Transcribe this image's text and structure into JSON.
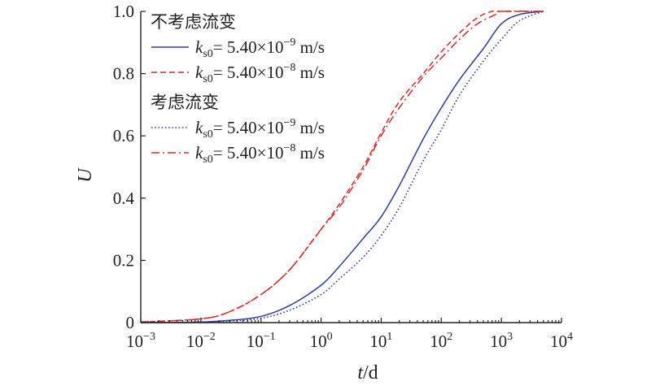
{
  "chart_data": {
    "type": "line",
    "x_scale": "log",
    "xlim": [
      0.001,
      10000
    ],
    "ylim": [
      0,
      1.0
    ],
    "xlabel_var": "t",
    "xlabel_unit": "/d",
    "ylabel": "U",
    "x_ticks": [
      {
        "value": 0.001,
        "base": "10",
        "exp": "−3"
      },
      {
        "value": 0.01,
        "base": "10",
        "exp": "−2"
      },
      {
        "value": 0.1,
        "base": "10",
        "exp": "−1"
      },
      {
        "value": 1,
        "base": "10",
        "exp": "0"
      },
      {
        "value": 10,
        "base": "10",
        "exp": "1"
      },
      {
        "value": 100,
        "base": "10",
        "exp": "2"
      },
      {
        "value": 1000,
        "base": "10",
        "exp": "3"
      },
      {
        "value": 10000,
        "base": "10",
        "exp": "4"
      }
    ],
    "y_ticks": [
      {
        "value": 0,
        "label": "0"
      },
      {
        "value": 0.2,
        "label": "0.2"
      },
      {
        "value": 0.4,
        "label": "0.4"
      },
      {
        "value": 0.6,
        "label": "0.6"
      },
      {
        "value": 0.8,
        "label": "0.8"
      },
      {
        "value": 1.0,
        "label": "1.0"
      }
    ],
    "legend": {
      "placement": "top-left",
      "groups": [
        {
          "title": "不考虑流变",
          "series_indices": [
            0,
            1
          ]
        },
        {
          "title": "考虑流变",
          "series_indices": [
            2,
            3
          ]
        }
      ]
    },
    "series": [
      {
        "label_var": "k",
        "label_sub": "s0",
        "label_eq": "= 5.40×10",
        "label_exp": "−9",
        "label_unit": " m/s",
        "color": "#2b3d9a",
        "style": "solid",
        "x": [
          0.001,
          0.01,
          0.03,
          0.1,
          0.3,
          1,
          2,
          5,
          10,
          20,
          50,
          100,
          200,
          500,
          1000,
          2000,
          5000
        ],
        "y": [
          0.0,
          0.002,
          0.007,
          0.02,
          0.055,
          0.12,
          0.18,
          0.27,
          0.34,
          0.44,
          0.59,
          0.69,
          0.78,
          0.88,
          0.96,
          0.99,
          1.0
        ]
      },
      {
        "label_var": "k",
        "label_sub": "s0",
        "label_eq": "= 5.40×10",
        "label_exp": "−8",
        "label_unit": " m/s",
        "color": "#d42a2a",
        "style": "dashed",
        "x": [
          0.001,
          0.01,
          0.03,
          0.1,
          0.3,
          1,
          2,
          5,
          10,
          20,
          50,
          100,
          200,
          400,
          700,
          1000,
          5000
        ],
        "y": [
          0.002,
          0.012,
          0.035,
          0.09,
          0.17,
          0.3,
          0.38,
          0.5,
          0.61,
          0.71,
          0.8,
          0.87,
          0.93,
          0.98,
          1.0,
          1.0,
          1.0
        ]
      },
      {
        "label_var": "k",
        "label_sub": "s0",
        "label_eq": "= 5.40×10",
        "label_exp": "−9",
        "label_unit": " m/s",
        "color": "#2b3d9a",
        "style": "dotted",
        "x": [
          0.001,
          0.01,
          0.03,
          0.1,
          0.3,
          1,
          2,
          5,
          10,
          20,
          50,
          100,
          200,
          500,
          1000,
          2000,
          5000
        ],
        "y": [
          0.0,
          0.001,
          0.005,
          0.014,
          0.04,
          0.09,
          0.14,
          0.21,
          0.28,
          0.37,
          0.52,
          0.62,
          0.73,
          0.84,
          0.91,
          0.97,
          1.0
        ]
      },
      {
        "label_var": "k",
        "label_sub": "s0",
        "label_eq": "= 5.40×10",
        "label_exp": "−8",
        "label_unit": " m/s",
        "color": "#d42a2a",
        "style": "dashdot",
        "x": [
          0.001,
          0.01,
          0.03,
          0.1,
          0.3,
          1,
          2,
          5,
          10,
          20,
          50,
          100,
          200,
          400,
          800,
          1000,
          5000
        ],
        "y": [
          0.002,
          0.012,
          0.035,
          0.09,
          0.17,
          0.3,
          0.37,
          0.49,
          0.6,
          0.69,
          0.79,
          0.85,
          0.91,
          0.96,
          0.99,
          1.0,
          1.0
        ]
      }
    ]
  }
}
